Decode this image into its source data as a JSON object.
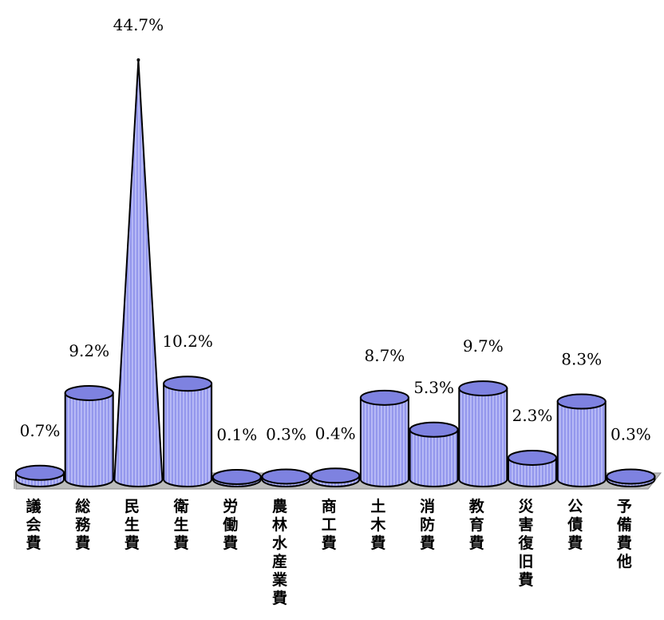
{
  "chart_data": {
    "type": "bar",
    "title": "",
    "xlabel": "",
    "ylabel": "",
    "unit": "%",
    "categories": [
      "議会費",
      "総務費",
      "民生費",
      "衛生費",
      "労働費",
      "農林水産業費",
      "商工費",
      "土木費",
      "消防費",
      "教育費",
      "災害復旧費",
      "公債費",
      "予備費他"
    ],
    "values": [
      0.7,
      9.2,
      44.7,
      10.2,
      0.1,
      0.3,
      0.4,
      8.7,
      5.3,
      9.7,
      2.3,
      8.3,
      0.3
    ],
    "value_labels": [
      "0.7%",
      "9.2%",
      "44.7%",
      "10.2%",
      "0.1%",
      "0.3%",
      "0.4%",
      "8.7%",
      "5.3%",
      "9.7%",
      "2.3%",
      "8.3%",
      "0.3%"
    ],
    "shapes": [
      "cylinder",
      "cylinder",
      "cone",
      "cylinder",
      "cylinder",
      "cylinder",
      "cylinder",
      "cylinder",
      "cylinder",
      "cylinder",
      "cylinder",
      "cylinder",
      "cylinder"
    ],
    "ylim": [
      0,
      44.7
    ],
    "grid": false,
    "legend": "none",
    "colors": {
      "bar_fill": "#9a9ef0",
      "bar_top": "#7e82e0",
      "bar_stroke": "#000000",
      "floor": "#bdbdbd"
    }
  }
}
